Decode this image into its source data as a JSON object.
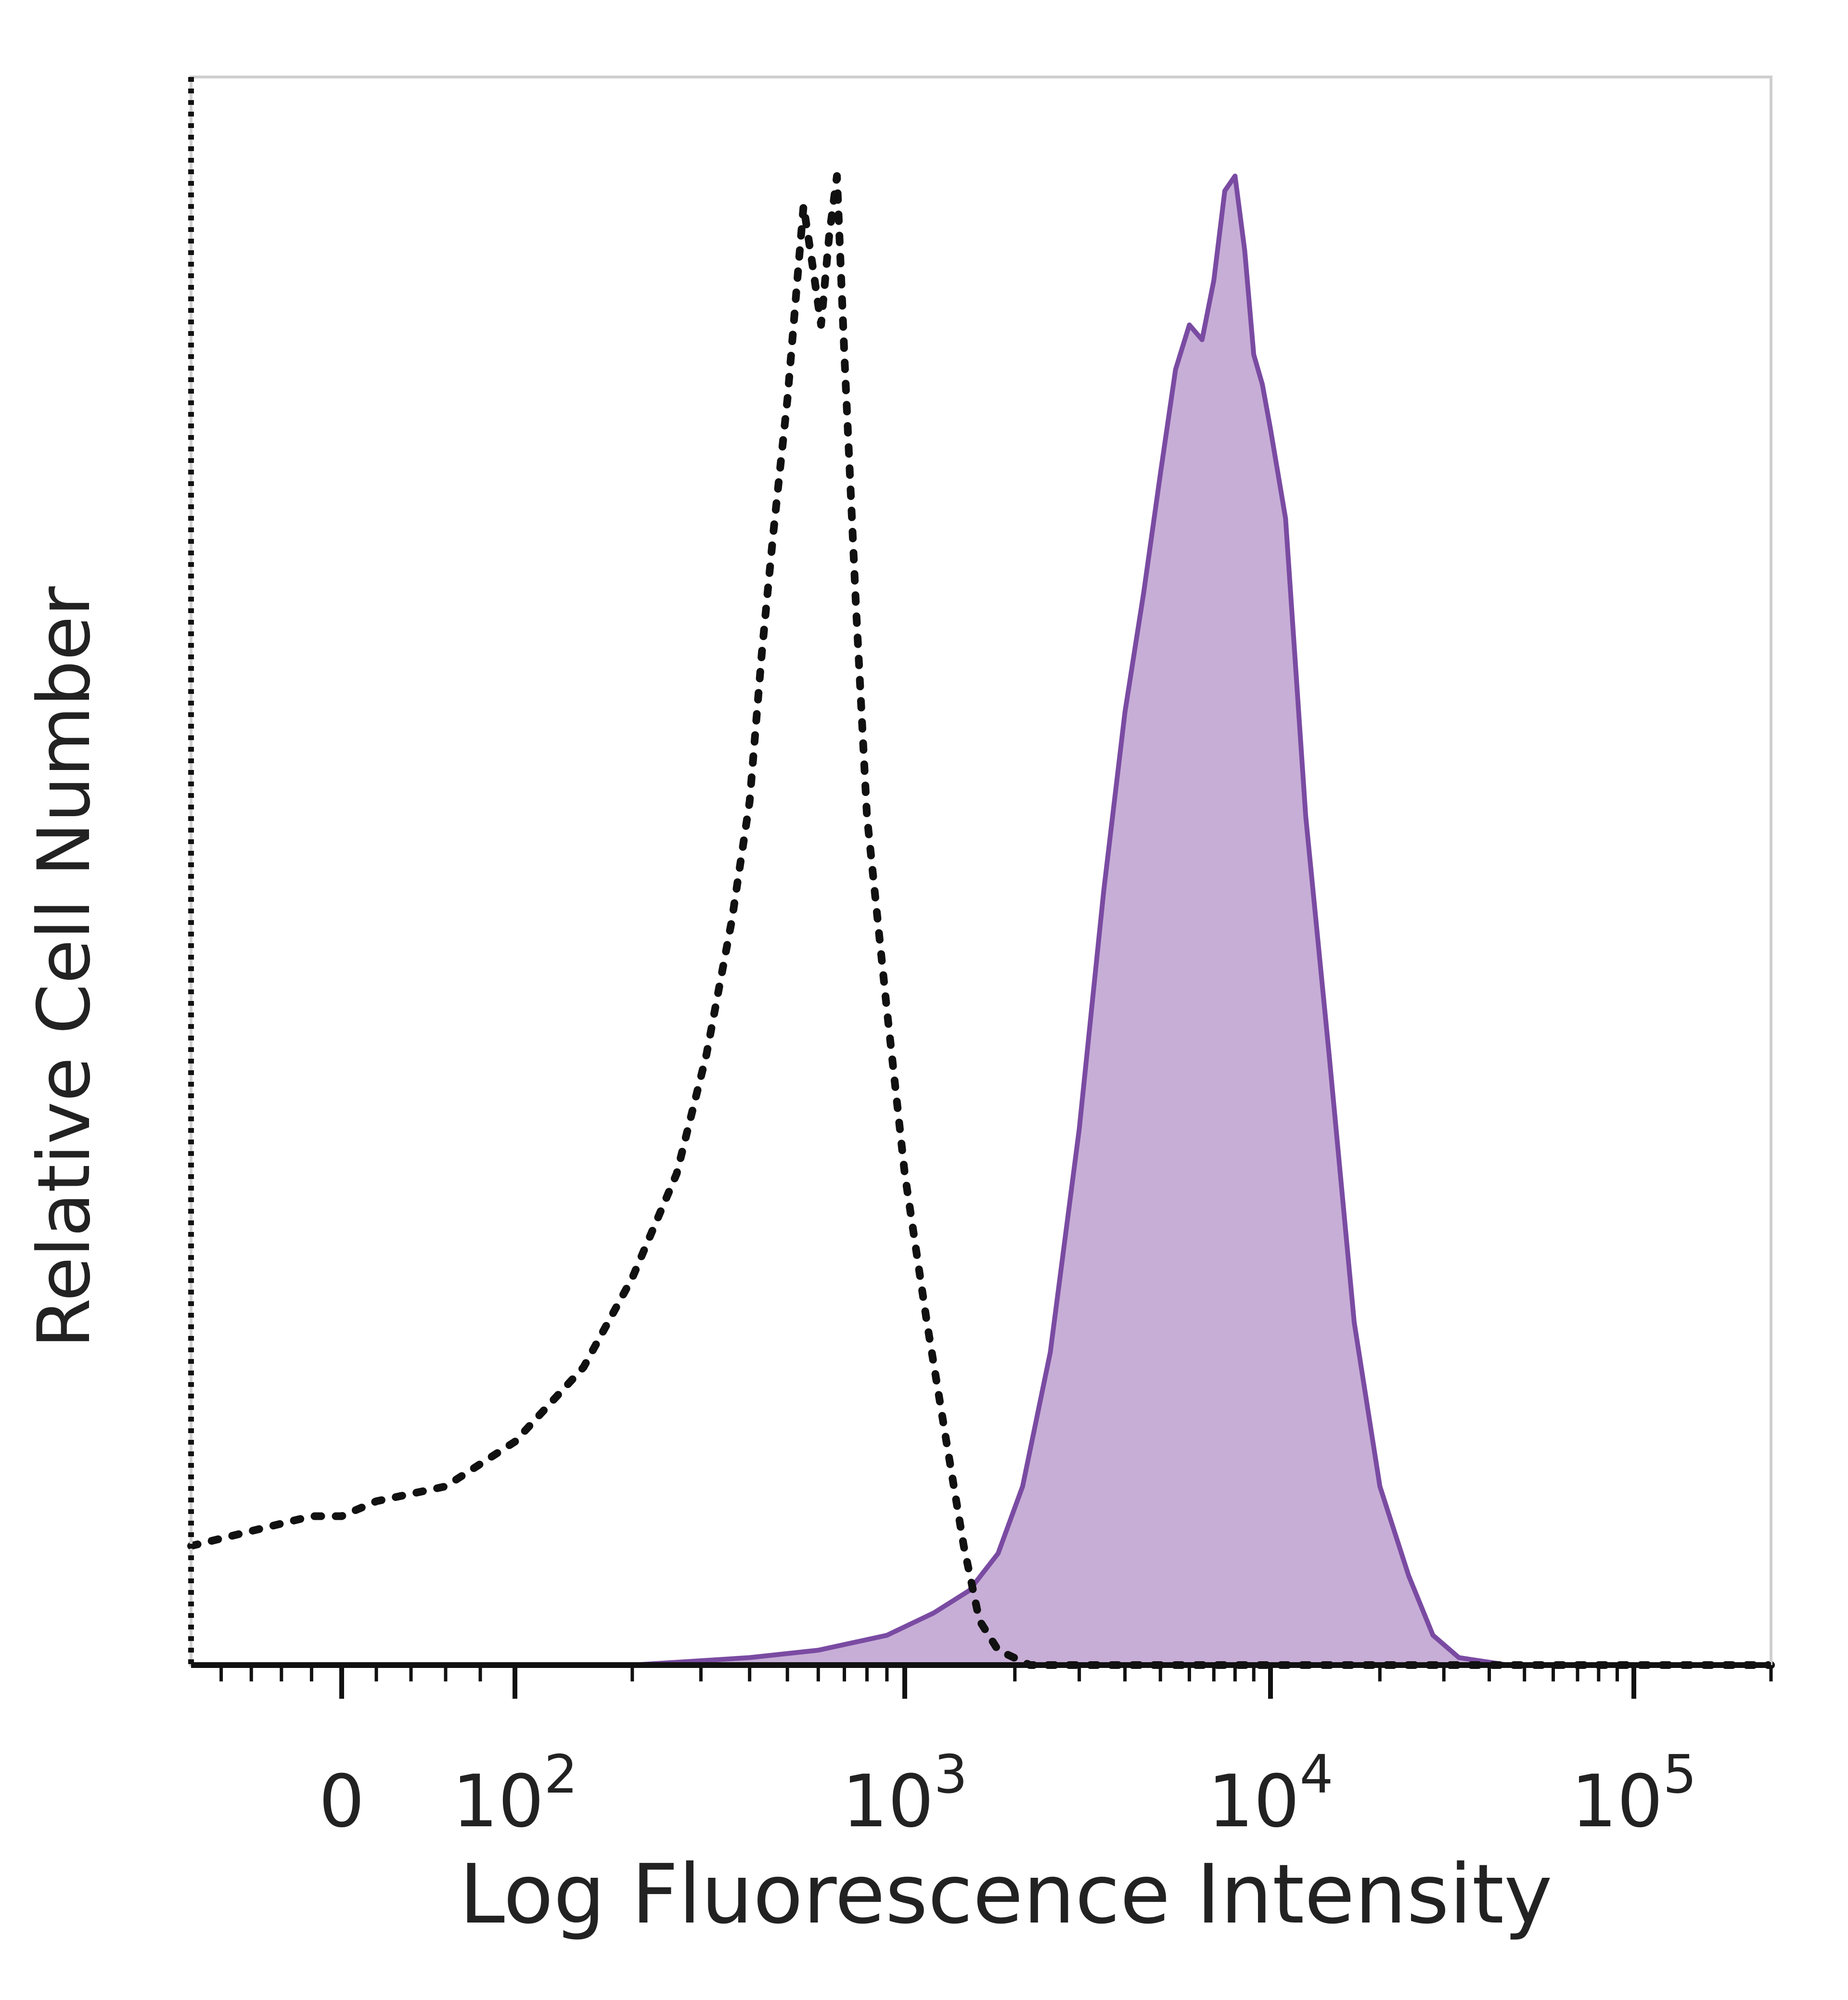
{
  "chart_data": {
    "type": "area",
    "title": "",
    "xlabel": "Log Fluorescence Intensity",
    "ylabel": "Relative Cell Number",
    "x_scale": "biexponential",
    "xlim": [
      -100,
      200000
    ],
    "ylim": [
      0,
      1
    ],
    "x_ticks": [
      {
        "value": 0,
        "base": "0",
        "exp": ""
      },
      {
        "value": 100,
        "base": "10",
        "exp": "2"
      },
      {
        "value": 1000,
        "base": "10",
        "exp": "3"
      },
      {
        "value": 10000,
        "base": "10",
        "exp": "4"
      },
      {
        "value": 100000,
        "base": "10",
        "exp": "5"
      }
    ],
    "y_ticks_labeled": false,
    "grid": false,
    "legend": "none",
    "series": [
      {
        "style": "dotted",
        "color": "#111111",
        "fill": "none",
        "points": [
          [
            -100,
            0.08
          ],
          [
            -60,
            0.09
          ],
          [
            -20,
            0.1
          ],
          [
            0,
            0.1
          ],
          [
            20,
            0.11
          ],
          [
            60,
            0.12
          ],
          [
            100,
            0.15
          ],
          [
            150,
            0.2
          ],
          [
            200,
            0.26
          ],
          [
            260,
            0.33
          ],
          [
            310,
            0.41
          ],
          [
            360,
            0.5
          ],
          [
            400,
            0.58
          ],
          [
            430,
            0.68
          ],
          [
            460,
            0.76
          ],
          [
            500,
            0.85
          ],
          [
            530,
            0.93
          ],
          [
            550,
            0.98
          ],
          [
            580,
            0.94
          ],
          [
            610,
            0.9
          ],
          [
            640,
            0.96
          ],
          [
            670,
            1.0
          ],
          [
            700,
            0.88
          ],
          [
            750,
            0.71
          ],
          [
            800,
            0.57
          ],
          [
            900,
            0.44
          ],
          [
            1000,
            0.33
          ],
          [
            1150,
            0.23
          ],
          [
            1300,
            0.15
          ],
          [
            1450,
            0.08
          ],
          [
            1600,
            0.03
          ],
          [
            1800,
            0.01
          ],
          [
            2200,
            0.0
          ],
          [
            200000,
            0.0
          ]
        ]
      },
      {
        "style": "solid",
        "color": "#7a4ba2",
        "fill": "#c7aed6",
        "points": [
          [
            -100,
            0.0
          ],
          [
            200,
            0.0
          ],
          [
            400,
            0.005
          ],
          [
            600,
            0.01
          ],
          [
            900,
            0.02
          ],
          [
            1200,
            0.035
          ],
          [
            1500,
            0.05
          ],
          [
            1800,
            0.075
          ],
          [
            2100,
            0.12
          ],
          [
            2500,
            0.21
          ],
          [
            3000,
            0.36
          ],
          [
            3500,
            0.52
          ],
          [
            4000,
            0.64
          ],
          [
            4500,
            0.72
          ],
          [
            5000,
            0.8
          ],
          [
            5500,
            0.87
          ],
          [
            6000,
            0.9
          ],
          [
            6500,
            0.89
          ],
          [
            7000,
            0.93
          ],
          [
            7500,
            0.99
          ],
          [
            8000,
            1.0
          ],
          [
            8500,
            0.95
          ],
          [
            9000,
            0.88
          ],
          [
            9500,
            0.86
          ],
          [
            10000,
            0.83
          ],
          [
            11000,
            0.77
          ],
          [
            12500,
            0.57
          ],
          [
            14500,
            0.41
          ],
          [
            17000,
            0.23
          ],
          [
            20000,
            0.12
          ],
          [
            24000,
            0.06
          ],
          [
            28000,
            0.02
          ],
          [
            33000,
            0.005
          ],
          [
            45000,
            0.0
          ],
          [
            200000,
            0.0
          ]
        ]
      }
    ]
  }
}
